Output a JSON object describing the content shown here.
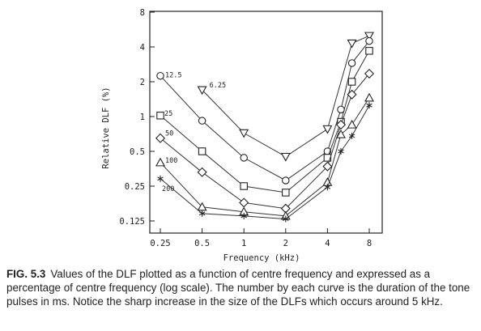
{
  "chart_data": {
    "type": "line",
    "xlabel": "Frequency (kHz)",
    "ylabel": "Relative DLF (%)",
    "x_scale": "log",
    "y_scale": "log",
    "x_ticks": [
      0.25,
      0.5,
      1,
      2,
      4,
      8
    ],
    "x_tick_labels": [
      "0.25",
      "0.5",
      "1",
      "2",
      "4",
      "8"
    ],
    "y_ticks": [
      0.125,
      0.25,
      0.5,
      1,
      2,
      4,
      8
    ],
    "y_tick_labels": [
      "0.125",
      "0.25",
      "0.5",
      "1",
      "2",
      "4",
      "8"
    ],
    "xlim": [
      0.18,
      10
    ],
    "ylim": [
      0.09,
      8
    ],
    "grid": false,
    "legend": "none",
    "series": [
      {
        "name": "6.25",
        "marker": "triangle-down",
        "x": [
          0.5,
          1,
          2,
          4,
          6,
          8
        ],
        "y": [
          1.7,
          0.72,
          0.45,
          0.78,
          4.3,
          5.0
        ]
      },
      {
        "name": "12.5",
        "marker": "circle",
        "x": [
          0.25,
          0.5,
          1,
          2,
          4,
          5,
          6,
          8
        ],
        "y": [
          2.25,
          0.92,
          0.44,
          0.28,
          0.5,
          1.15,
          2.9,
          4.5
        ]
      },
      {
        "name": "25",
        "marker": "square",
        "x": [
          0.25,
          0.5,
          1,
          2,
          4,
          5,
          6,
          8
        ],
        "y": [
          1.02,
          0.5,
          0.25,
          0.22,
          0.44,
          0.9,
          2.0,
          3.7
        ]
      },
      {
        "name": "50",
        "marker": "diamond",
        "x": [
          0.25,
          0.5,
          1,
          2,
          4,
          5,
          6,
          8
        ],
        "y": [
          0.65,
          0.33,
          0.18,
          0.16,
          0.37,
          0.85,
          1.55,
          2.35
        ]
      },
      {
        "name": "100",
        "marker": "triangle-up",
        "x": [
          0.25,
          0.5,
          1,
          2,
          4,
          5,
          6,
          8
        ],
        "y": [
          0.4,
          0.165,
          0.15,
          0.138,
          0.27,
          0.7,
          0.85,
          1.45
        ]
      },
      {
        "name": "200",
        "marker": "star",
        "x": [
          0.25,
          0.5,
          1,
          2,
          4,
          5,
          6,
          8
        ],
        "y": [
          0.29,
          0.145,
          0.138,
          0.13,
          0.245,
          0.5,
          0.68,
          1.25
        ]
      }
    ]
  },
  "caption": {
    "figure_label": "FIG. 5.3",
    "text": "Values of the DLF plotted as a function of centre frequency and expressed as a percentage of centre frequency (log scale). The number by each curve is the duration of the tone pulses in ms. Notice the sharp increase in the size of the DLFs which occurs around 5 kHz."
  }
}
